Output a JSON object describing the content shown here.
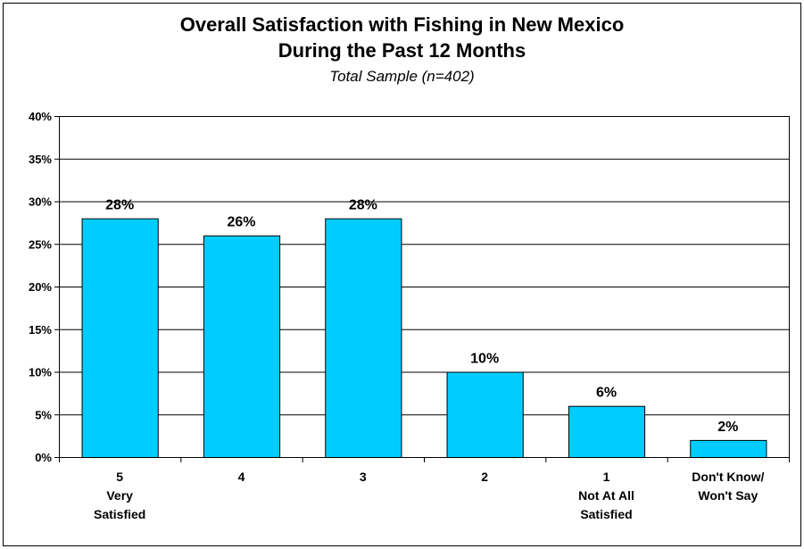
{
  "chart_data": {
    "type": "bar",
    "title": "Overall Satisfaction with Fishing in New Mexico",
    "title_line_2": "During the Past 12 Months",
    "subtitle": "Total Sample (n=402)",
    "xlabel": "",
    "ylabel": "",
    "categories": [
      [
        "5",
        "Very",
        "Satisfied"
      ],
      [
        "4"
      ],
      [
        "3"
      ],
      [
        "2"
      ],
      [
        "1",
        "Not At All",
        "Satisfied"
      ],
      [
        "Don't Know/",
        "Won't Say"
      ]
    ],
    "values": [
      28,
      26,
      28,
      10,
      6,
      2
    ],
    "data_labels": [
      "28%",
      "26%",
      "28%",
      "10%",
      "6%",
      "2%"
    ],
    "ylim": [
      0,
      40
    ],
    "yticks": [
      0,
      5,
      10,
      15,
      20,
      25,
      30,
      35,
      40
    ],
    "ytick_labels": [
      "0%",
      "5%",
      "10%",
      "15%",
      "20%",
      "25%",
      "30%",
      "35%",
      "40%"
    ],
    "grid": true,
    "legend": "none",
    "bar_color": "#00CCFF",
    "bar_edge_color": "#000000",
    "grid_color": "#000000"
  }
}
